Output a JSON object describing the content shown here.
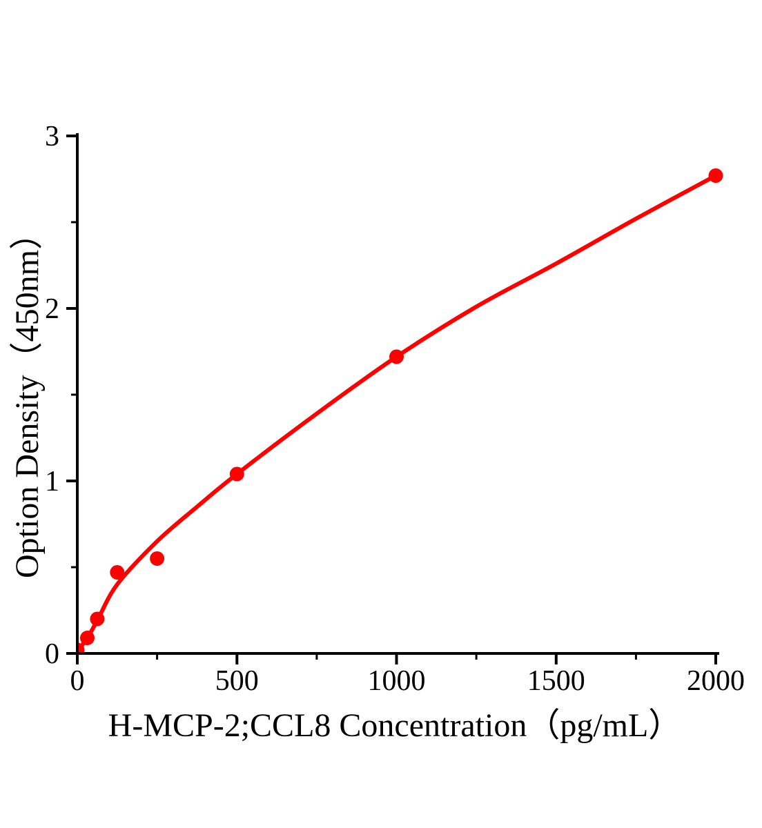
{
  "figure": {
    "background": "#ffffff",
    "description": "ELISA standard curve scatter plot with fitted curve"
  },
  "chart_data": {
    "type": "scatter",
    "title": "",
    "xlabel": "H-MCP-2;CCL8 Concentration（pg/mL）",
    "ylabel": "Option Density（450nm）",
    "xlim": [
      0,
      2000
    ],
    "ylim": [
      0,
      3
    ],
    "x_major_ticks": [
      0,
      500,
      1000,
      1500,
      2000
    ],
    "x_minor_ticks": [
      250,
      750,
      1250,
      1750
    ],
    "y_major_ticks": [
      0,
      1,
      2,
      3
    ],
    "y_minor_ticks": [
      0.5,
      1.5,
      2.5
    ],
    "grid": false,
    "legend_position": "none",
    "series": [
      {
        "marker": "circle",
        "color": "#ff0000",
        "points": [
          [
            0,
            0.02
          ],
          [
            31.25,
            0.09
          ],
          [
            62.5,
            0.2
          ],
          [
            125,
            0.47
          ],
          [
            250,
            0.55
          ],
          [
            500,
            1.04
          ],
          [
            1000,
            1.72
          ],
          [
            2000,
            2.77
          ]
        ],
        "fit_curve_points": [
          [
            0,
            0.01
          ],
          [
            31.25,
            0.09
          ],
          [
            62.5,
            0.19
          ],
          [
            125,
            0.4
          ],
          [
            250,
            0.65
          ],
          [
            375,
            0.85
          ],
          [
            500,
            1.04
          ],
          [
            750,
            1.39
          ],
          [
            1000,
            1.72
          ],
          [
            1250,
            2.01
          ],
          [
            1500,
            2.26
          ],
          [
            1750,
            2.52
          ],
          [
            2000,
            2.77
          ]
        ]
      }
    ],
    "colors": {
      "curve": "#ff0000",
      "marker": "#ff0000",
      "axis": "#000000",
      "text": "#000000"
    }
  }
}
